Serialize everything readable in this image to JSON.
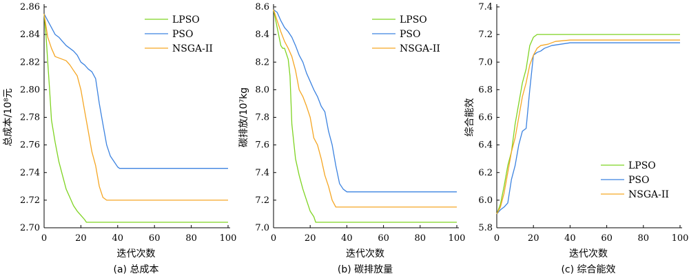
{
  "colors": {
    "LPSO": "#7ed321",
    "PSO": "#3b82e0",
    "NSGA-II": "#f5a623"
  },
  "chart_data": [
    {
      "type": "line",
      "caption": "(a) 总成本",
      "xlabel": "迭代次数",
      "ylabel": "总成本/10⁸元",
      "xlim": [
        0,
        100
      ],
      "ylim": [
        2.7,
        2.86
      ],
      "xticks": [
        0,
        20,
        40,
        60,
        80,
        100
      ],
      "yticks": [
        2.7,
        2.72,
        2.74,
        2.76,
        2.78,
        2.8,
        2.82,
        2.84,
        2.86
      ],
      "ytick_labels": [
        "2.70",
        "2.72",
        "2.74",
        "2.76",
        "2.78",
        "2.80",
        "2.82",
        "2.84",
        "2.86"
      ],
      "legend": "top-right",
      "series": [
        {
          "name": "LPSO",
          "x": [
            0,
            1,
            2,
            3,
            4,
            6,
            8,
            10,
            12,
            14,
            16,
            18,
            20,
            22,
            23,
            24,
            30,
            40,
            60,
            80,
            100
          ],
          "y": [
            2.855,
            2.84,
            2.82,
            2.8,
            2.778,
            2.762,
            2.748,
            2.738,
            2.728,
            2.722,
            2.716,
            2.712,
            2.709,
            2.706,
            2.704,
            2.704,
            2.704,
            2.704,
            2.704,
            2.704,
            2.704
          ]
        },
        {
          "name": "PSO",
          "x": [
            0,
            2,
            4,
            6,
            8,
            10,
            12,
            14,
            16,
            18,
            20,
            22,
            24,
            26,
            28,
            30,
            32,
            34,
            36,
            38,
            40,
            41,
            50,
            60,
            80,
            100
          ],
          "y": [
            2.855,
            2.85,
            2.845,
            2.84,
            2.838,
            2.835,
            2.832,
            2.83,
            2.828,
            2.825,
            2.82,
            2.818,
            2.815,
            2.813,
            2.808,
            2.79,
            2.775,
            2.76,
            2.752,
            2.748,
            2.744,
            2.743,
            2.743,
            2.743,
            2.743,
            2.743
          ]
        },
        {
          "name": "NSGA-II",
          "x": [
            0,
            2,
            4,
            6,
            8,
            10,
            12,
            14,
            16,
            18,
            20,
            22,
            24,
            26,
            28,
            30,
            32,
            34,
            36,
            40,
            60,
            80,
            100
          ],
          "y": [
            2.855,
            2.838,
            2.83,
            2.824,
            2.823,
            2.822,
            2.821,
            2.818,
            2.814,
            2.81,
            2.8,
            2.785,
            2.77,
            2.755,
            2.745,
            2.73,
            2.722,
            2.72,
            2.72,
            2.72,
            2.72,
            2.72,
            2.72
          ]
        }
      ]
    },
    {
      "type": "line",
      "caption": "(b) 碳排放量",
      "xlabel": "迭代次数",
      "ylabel": "碳排放/10⁷kg",
      "xlim": [
        0,
        100
      ],
      "ylim": [
        7.0,
        8.6
      ],
      "xticks": [
        0,
        20,
        40,
        60,
        80,
        100
      ],
      "yticks": [
        7.0,
        7.2,
        7.4,
        7.6,
        7.8,
        8.0,
        8.2,
        8.4,
        8.6
      ],
      "ytick_labels": [
        "7.0",
        "7.2",
        "7.4",
        "7.6",
        "7.8",
        "8.0",
        "8.2",
        "8.4",
        "8.6"
      ],
      "legend": "top-right",
      "series": [
        {
          "name": "LPSO",
          "x": [
            0,
            2,
            4,
            5,
            6,
            8,
            9,
            10,
            12,
            14,
            16,
            18,
            20,
            22,
            23,
            24,
            30,
            40,
            60,
            80,
            100
          ],
          "y": [
            8.58,
            8.45,
            8.32,
            8.3,
            8.3,
            8.22,
            8.1,
            7.75,
            7.5,
            7.38,
            7.28,
            7.2,
            7.12,
            7.08,
            7.04,
            7.04,
            7.04,
            7.04,
            7.04,
            7.04,
            7.04
          ]
        },
        {
          "name": "PSO",
          "x": [
            0,
            2,
            4,
            6,
            8,
            10,
            12,
            14,
            16,
            18,
            20,
            22,
            24,
            26,
            28,
            30,
            32,
            34,
            36,
            38,
            40,
            41,
            50,
            60,
            80,
            100
          ],
          "y": [
            8.58,
            8.56,
            8.5,
            8.45,
            8.42,
            8.38,
            8.32,
            8.25,
            8.2,
            8.12,
            8.06,
            8.0,
            7.95,
            7.88,
            7.84,
            7.7,
            7.6,
            7.45,
            7.32,
            7.28,
            7.26,
            7.26,
            7.26,
            7.26,
            7.26,
            7.26
          ]
        },
        {
          "name": "NSGA-II",
          "x": [
            0,
            2,
            4,
            6,
            8,
            10,
            12,
            14,
            16,
            18,
            20,
            22,
            24,
            26,
            28,
            30,
            32,
            34,
            36,
            40,
            60,
            80,
            100
          ],
          "y": [
            8.58,
            8.5,
            8.42,
            8.35,
            8.3,
            8.24,
            8.14,
            8.0,
            7.95,
            7.88,
            7.8,
            7.65,
            7.6,
            7.5,
            7.38,
            7.3,
            7.2,
            7.15,
            7.15,
            7.15,
            7.15,
            7.15,
            7.15
          ]
        }
      ]
    },
    {
      "type": "line",
      "caption": "(c) 综合能效",
      "xlabel": "迭代次数",
      "ylabel": "综合能效",
      "xlim": [
        0,
        100
      ],
      "ylim": [
        5.8,
        7.4
      ],
      "xticks": [
        0,
        20,
        40,
        60,
        80,
        100
      ],
      "yticks": [
        5.8,
        6.0,
        6.2,
        6.4,
        6.6,
        6.8,
        7.0,
        7.2,
        7.4
      ],
      "ytick_labels": [
        "5.8",
        "6.0",
        "6.2",
        "6.4",
        "6.6",
        "6.8",
        "7.0",
        "7.2",
        "7.4"
      ],
      "legend": "bottom-right",
      "series": [
        {
          "name": "LPSO",
          "x": [
            0,
            2,
            4,
            6,
            8,
            10,
            12,
            14,
            16,
            18,
            20,
            22,
            24,
            30,
            40,
            60,
            80,
            100
          ],
          "y": [
            5.9,
            5.97,
            6.1,
            6.25,
            6.35,
            6.55,
            6.7,
            6.85,
            6.95,
            7.12,
            7.18,
            7.2,
            7.2,
            7.2,
            7.2,
            7.2,
            7.2,
            7.2
          ]
        },
        {
          "name": "PSO",
          "x": [
            0,
            2,
            4,
            6,
            8,
            10,
            12,
            14,
            16,
            18,
            20,
            22,
            24,
            26,
            30,
            35,
            40,
            60,
            80,
            100
          ],
          "y": [
            5.9,
            5.93,
            5.95,
            5.98,
            6.15,
            6.25,
            6.4,
            6.5,
            6.52,
            6.8,
            7.05,
            7.07,
            7.08,
            7.1,
            7.12,
            7.13,
            7.14,
            7.14,
            7.14,
            7.14
          ]
        },
        {
          "name": "NSGA-II",
          "x": [
            0,
            2,
            4,
            6,
            8,
            10,
            12,
            14,
            16,
            18,
            20,
            22,
            24,
            28,
            32,
            40,
            60,
            80,
            100
          ],
          "y": [
            5.9,
            5.95,
            6.05,
            6.2,
            6.35,
            6.45,
            6.6,
            6.75,
            6.85,
            6.98,
            7.05,
            7.1,
            7.12,
            7.13,
            7.15,
            7.16,
            7.16,
            7.16,
            7.16
          ]
        }
      ]
    }
  ]
}
